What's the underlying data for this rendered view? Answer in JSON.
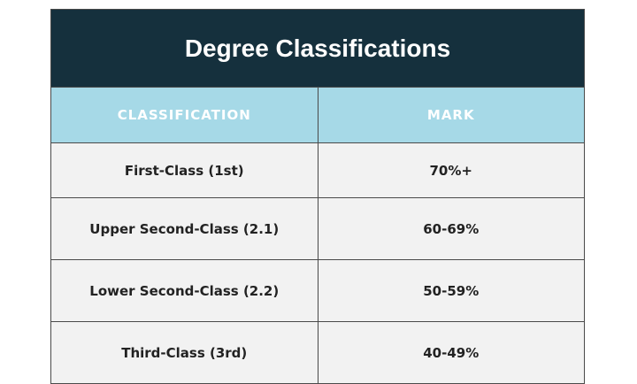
{
  "title": "Degree Classifications",
  "table": {
    "header": [
      "CLASSIFICATION",
      "MARK"
    ],
    "rows": [
      [
        "First-Class (1st)",
        "70%+"
      ],
      [
        "Upper Second-Class (2.1)",
        "60-69%"
      ],
      [
        "Lower Second-Class (2.2)",
        "50-59%"
      ],
      [
        "Third-Class (3rd)",
        "40-49%"
      ]
    ]
  }
}
